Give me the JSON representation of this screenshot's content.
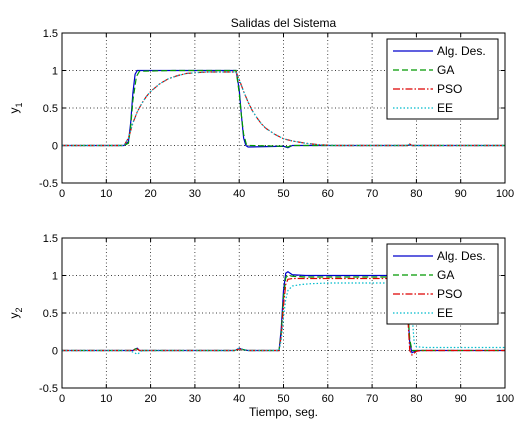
{
  "chart_data": [
    {
      "type": "line",
      "title": "Salidas del Sistema",
      "xlabel": "",
      "ylabel": "y",
      "ylabel_subscript": "1",
      "xlim": [
        0,
        100
      ],
      "ylim": [
        -0.5,
        1.5
      ],
      "xticks": [
        0,
        10,
        20,
        30,
        40,
        50,
        60,
        70,
        80,
        90,
        100
      ],
      "yticks": [
        -0.5,
        0,
        0.5,
        1,
        1.5
      ],
      "xtick_labels": [
        "0",
        "10",
        "20",
        "30",
        "40",
        "50",
        "60",
        "70",
        "80",
        "90",
        "100"
      ],
      "ytick_labels": [
        "-0.5",
        "0",
        "0.5",
        "1",
        "1.5"
      ],
      "grid": true,
      "legend_position": "top-right",
      "series": [
        {
          "name": "Alg. Des.",
          "color": "#0000cc",
          "dash": "solid",
          "points": [
            [
              0,
              0
            ],
            [
              14,
              0
            ],
            [
              15,
              0.05
            ],
            [
              15.5,
              0.3
            ],
            [
              16,
              0.7
            ],
            [
              16.5,
              0.95
            ],
            [
              17,
              1.0
            ],
            [
              25,
              1.0
            ],
            [
              39.3,
              1.0
            ],
            [
              40,
              0.75
            ],
            [
              40.5,
              0.4
            ],
            [
              41,
              0.1
            ],
            [
              41.5,
              0.0
            ],
            [
              42,
              -0.02
            ],
            [
              50,
              -0.01
            ],
            [
              51,
              -0.03
            ],
            [
              52,
              0.0
            ],
            [
              78,
              0.0
            ],
            [
              78.5,
              0.01
            ],
            [
              79,
              0.0
            ],
            [
              100,
              0
            ]
          ]
        },
        {
          "name": "GA",
          "color": "#009900",
          "dash": "6 3",
          "points": [
            [
              0,
              0
            ],
            [
              14,
              0
            ],
            [
              15,
              0.03
            ],
            [
              15.5,
              0.25
            ],
            [
              16,
              0.6
            ],
            [
              16.8,
              0.92
            ],
            [
              17.5,
              0.99
            ],
            [
              25,
              1.0
            ],
            [
              39.3,
              1.0
            ],
            [
              40,
              0.7
            ],
            [
              40.5,
              0.4
            ],
            [
              41,
              0.15
            ],
            [
              41.6,
              0.02
            ],
            [
              42,
              0.0
            ],
            [
              50,
              -0.01
            ],
            [
              51,
              -0.02
            ],
            [
              52,
              0.0
            ],
            [
              78,
              0.0
            ],
            [
              78.5,
              0.01
            ],
            [
              79,
              0.0
            ],
            [
              100,
              0
            ]
          ]
        },
        {
          "name": "PSO",
          "color": "#dd0000",
          "dash": "7 2 1.5 2",
          "points": [
            [
              0,
              0
            ],
            [
              14,
              0
            ],
            [
              15,
              0.1
            ],
            [
              16,
              0.3
            ],
            [
              17,
              0.45
            ],
            [
              18,
              0.56
            ],
            [
              19,
              0.65
            ],
            [
              20,
              0.72
            ],
            [
              22,
              0.82
            ],
            [
              24,
              0.89
            ],
            [
              26,
              0.93
            ],
            [
              28,
              0.96
            ],
            [
              30,
              0.97
            ],
            [
              33,
              0.98
            ],
            [
              39.3,
              0.98
            ],
            [
              40,
              0.88
            ],
            [
              41,
              0.72
            ],
            [
              42,
              0.58
            ],
            [
              43,
              0.46
            ],
            [
              44,
              0.37
            ],
            [
              45,
              0.29
            ],
            [
              46,
              0.23
            ],
            [
              48,
              0.15
            ],
            [
              50,
              0.09
            ],
            [
              52,
              0.06
            ],
            [
              55,
              0.03
            ],
            [
              58,
              0.01
            ],
            [
              62,
              0.0
            ],
            [
              78,
              0.0
            ],
            [
              78.5,
              0.02
            ],
            [
              79,
              0.0
            ],
            [
              100,
              0
            ]
          ]
        },
        {
          "name": "EE",
          "color": "#00bbcc",
          "dash": "1.5 2",
          "points": [
            [
              0,
              0
            ],
            [
              14,
              0
            ],
            [
              15,
              0.1
            ],
            [
              16,
              0.3
            ],
            [
              17,
              0.45
            ],
            [
              18,
              0.56
            ],
            [
              19,
              0.65
            ],
            [
              20,
              0.72
            ],
            [
              22,
              0.82
            ],
            [
              24,
              0.89
            ],
            [
              26,
              0.93
            ],
            [
              28,
              0.96
            ],
            [
              30,
              0.97
            ],
            [
              33,
              0.98
            ],
            [
              39.3,
              0.98
            ],
            [
              40,
              0.88
            ],
            [
              41,
              0.72
            ],
            [
              42,
              0.58
            ],
            [
              43,
              0.46
            ],
            [
              44,
              0.37
            ],
            [
              45,
              0.29
            ],
            [
              46,
              0.23
            ],
            [
              48,
              0.15
            ],
            [
              50,
              0.09
            ],
            [
              52,
              0.06
            ],
            [
              55,
              0.03
            ],
            [
              58,
              0.01
            ],
            [
              62,
              0.0
            ],
            [
              78,
              0.0
            ],
            [
              78.5,
              0.02
            ],
            [
              79,
              0.0
            ],
            [
              100,
              0
            ]
          ]
        }
      ]
    },
    {
      "type": "line",
      "title": "",
      "xlabel": "Tiempo, seg.",
      "ylabel": "y",
      "ylabel_subscript": "2",
      "xlim": [
        0,
        100
      ],
      "ylim": [
        -0.5,
        1.5
      ],
      "xticks": [
        0,
        10,
        20,
        30,
        40,
        50,
        60,
        70,
        80,
        90,
        100
      ],
      "yticks": [
        -0.5,
        0,
        0.5,
        1,
        1.5
      ],
      "xtick_labels": [
        "0",
        "10",
        "20",
        "30",
        "40",
        "50",
        "60",
        "70",
        "80",
        "90",
        "100"
      ],
      "ytick_labels": [
        "-0.5",
        "0",
        "0.5",
        "1",
        "1.5"
      ],
      "grid": true,
      "legend_position": "top-right",
      "series": [
        {
          "name": "Alg. Des.",
          "color": "#0000cc",
          "dash": "solid",
          "points": [
            [
              0,
              0
            ],
            [
              16,
              0
            ],
            [
              16.5,
              0.02
            ],
            [
              17,
              0.03
            ],
            [
              17.5,
              0.0
            ],
            [
              39,
              0.0
            ],
            [
              40,
              0.03
            ],
            [
              41,
              0.01
            ],
            [
              42,
              0.0
            ],
            [
              49,
              0.0
            ],
            [
              49.5,
              0.3
            ],
            [
              50,
              0.8
            ],
            [
              50.5,
              1.03
            ],
            [
              51,
              1.05
            ],
            [
              52,
              1.01
            ],
            [
              55,
              1.0
            ],
            [
              77.5,
              1.0
            ],
            [
              78,
              0.6
            ],
            [
              78.5,
              0.1
            ],
            [
              79,
              -0.03
            ],
            [
              80,
              0.0
            ],
            [
              100,
              0.0
            ]
          ]
        },
        {
          "name": "GA",
          "color": "#009900",
          "dash": "6 3",
          "points": [
            [
              0,
              0
            ],
            [
              16,
              0
            ],
            [
              16.5,
              0.02
            ],
            [
              17,
              0.02
            ],
            [
              17.5,
              0.0
            ],
            [
              39,
              0.0
            ],
            [
              40,
              0.02
            ],
            [
              41,
              0.01
            ],
            [
              42,
              0.0
            ],
            [
              49,
              0.0
            ],
            [
              49.5,
              0.25
            ],
            [
              50,
              0.7
            ],
            [
              50.5,
              0.97
            ],
            [
              51,
              1.0
            ],
            [
              52,
              0.99
            ],
            [
              55,
              0.98
            ],
            [
              77.5,
              0.98
            ],
            [
              78,
              0.6
            ],
            [
              78.5,
              0.15
            ],
            [
              79,
              0.0
            ],
            [
              80,
              0.0
            ],
            [
              100,
              0.0
            ]
          ]
        },
        {
          "name": "PSO",
          "color": "#dd0000",
          "dash": "7 2 1.5 2",
          "points": [
            [
              0,
              0
            ],
            [
              16,
              0
            ],
            [
              16.5,
              0.01
            ],
            [
              17,
              0.02
            ],
            [
              17.5,
              0.0
            ],
            [
              39,
              0.0
            ],
            [
              40,
              0.02
            ],
            [
              41,
              0.01
            ],
            [
              42,
              0.0
            ],
            [
              49,
              0.0
            ],
            [
              49.5,
              0.2
            ],
            [
              50,
              0.6
            ],
            [
              50.5,
              0.88
            ],
            [
              51,
              0.95
            ],
            [
              52,
              0.96
            ],
            [
              55,
              0.96
            ],
            [
              77.5,
              0.96
            ],
            [
              78,
              0.5
            ],
            [
              78.5,
              0.0
            ],
            [
              79,
              -0.06
            ],
            [
              80,
              -0.01
            ],
            [
              81,
              0.0
            ],
            [
              100,
              0.0
            ]
          ]
        },
        {
          "name": "EE",
          "color": "#00bbcc",
          "dash": "1.5 2",
          "points": [
            [
              0,
              0
            ],
            [
              15,
              0.0
            ],
            [
              16,
              -0.02
            ],
            [
              17,
              -0.05
            ],
            [
              17.5,
              -0.03
            ],
            [
              18,
              0.0
            ],
            [
              39,
              0.0
            ],
            [
              40,
              0.03
            ],
            [
              41,
              0.01
            ],
            [
              42,
              0.0
            ],
            [
              49,
              0.0
            ],
            [
              49.5,
              0.15
            ],
            [
              50,
              0.45
            ],
            [
              50.5,
              0.68
            ],
            [
              51,
              0.8
            ],
            [
              52,
              0.86
            ],
            [
              54,
              0.88
            ],
            [
              56,
              0.89
            ],
            [
              60,
              0.9
            ],
            [
              70,
              0.9
            ],
            [
              77.5,
              0.9
            ],
            [
              78,
              0.95
            ],
            [
              78.5,
              0.97
            ],
            [
              79,
              0.5
            ],
            [
              79.5,
              0.1
            ],
            [
              80,
              0.05
            ],
            [
              82,
              0.04
            ],
            [
              100,
              0.04
            ]
          ]
        }
      ]
    }
  ]
}
